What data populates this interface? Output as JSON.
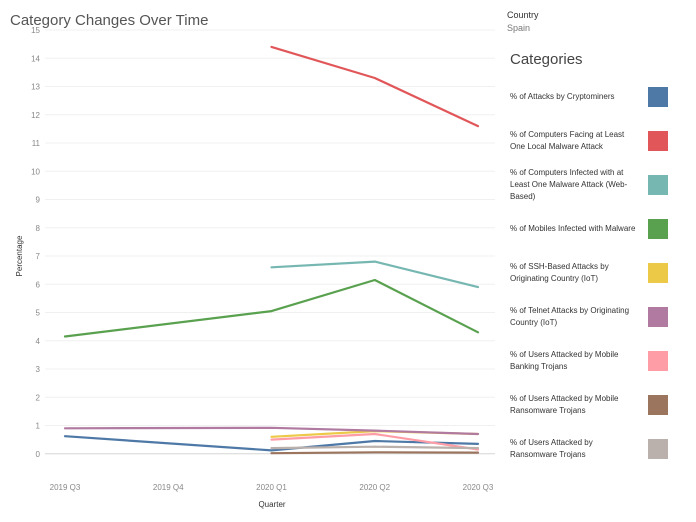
{
  "title": "Category Changes Over Time",
  "filter": {
    "label": "Country",
    "value": "Spain"
  },
  "legend_title": "Categories",
  "chart_data": {
    "type": "line",
    "title": "Category Changes Over Time",
    "xlabel": "Quarter",
    "ylabel": "Percentage",
    "ylim": [
      -1,
      15
    ],
    "yticks": [
      0,
      1,
      2,
      3,
      4,
      5,
      6,
      7,
      8,
      9,
      10,
      11,
      12,
      13,
      14,
      15
    ],
    "categories": [
      "2019 Q3",
      "2019 Q4",
      "2020 Q1",
      "2020 Q2",
      "2020 Q3"
    ],
    "grid": true,
    "legend": "right",
    "series": [
      {
        "name": "% of Attacks by Cryptominers",
        "color": "#4e79a7",
        "values": [
          0.62,
          null,
          0.12,
          0.45,
          0.35
        ]
      },
      {
        "name": "% of Computers Facing at Least One Local Malware Attack",
        "color": "#e15759",
        "values": [
          null,
          null,
          14.4,
          13.3,
          11.6
        ]
      },
      {
        "name": "% of Computers Infected with at Least One Malware Attack (Web-Based)",
        "color": "#76b7b2",
        "values": [
          null,
          null,
          6.6,
          6.8,
          5.9
        ]
      },
      {
        "name": "% of Mobiles Infected with Malware",
        "color": "#59a14f",
        "values": [
          4.15,
          null,
          5.05,
          6.15,
          4.3
        ]
      },
      {
        "name": "% of SSH-Based Attacks by Originating Country (IoT)",
        "color": "#edc948",
        "values": [
          null,
          null,
          0.6,
          0.8,
          0.7
        ]
      },
      {
        "name": "% of Telnet Attacks by Originating Country (IoT)",
        "color": "#b07aa1",
        "values": [
          0.9,
          null,
          0.92,
          0.82,
          0.7
        ]
      },
      {
        "name": "% of Users Attacked by Mobile Banking Trojans",
        "color": "#ff9da7",
        "values": [
          null,
          null,
          0.5,
          0.7,
          0.15
        ]
      },
      {
        "name": "% of Users Attacked by Mobile Ransomware Trojans",
        "color": "#9c755f",
        "values": [
          null,
          null,
          0.02,
          0.05,
          0.04
        ]
      },
      {
        "name": "% of Users Attacked by Ransomware Trojans",
        "color": "#bab0ac",
        "values": [
          null,
          null,
          0.2,
          0.25,
          0.2
        ]
      }
    ]
  }
}
